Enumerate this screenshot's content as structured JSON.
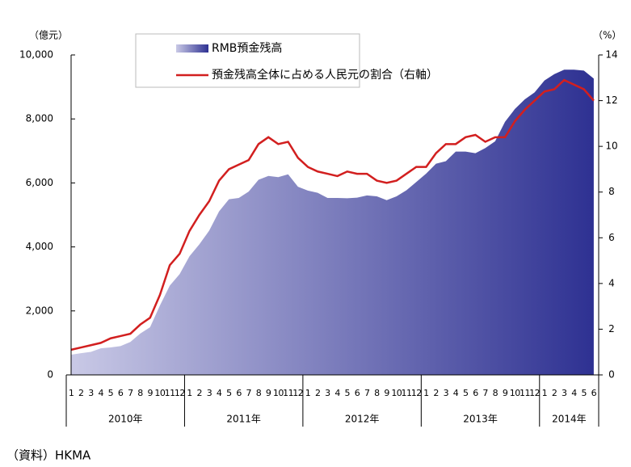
{
  "chart_data": {
    "type": "area-line",
    "y_axis_label": "（億元）",
    "y2_axis_label": "（%）",
    "source": "（資料）HKMA",
    "categories": [
      "1",
      "2",
      "3",
      "4",
      "5",
      "6",
      "7",
      "8",
      "9",
      "10",
      "11",
      "12",
      "1",
      "2",
      "3",
      "4",
      "5",
      "6",
      "7",
      "8",
      "9",
      "10",
      "11",
      "12",
      "1",
      "2",
      "3",
      "4",
      "5",
      "6",
      "7",
      "8",
      "9",
      "10",
      "11",
      "12",
      "1",
      "2",
      "3",
      "4",
      "5",
      "6",
      "7",
      "8",
      "9",
      "10",
      "11",
      "12",
      "1",
      "2",
      "3",
      "4",
      "5",
      "6"
    ],
    "years": [
      {
        "label": "2010年",
        "months": 12
      },
      {
        "label": "2011年",
        "months": 12
      },
      {
        "label": "2012年",
        "months": 12
      },
      {
        "label": "2013年",
        "months": 12
      },
      {
        "label": "2014年",
        "months": 6
      }
    ],
    "series": [
      {
        "name": "RMB預金残高",
        "type": "area",
        "axis": "y",
        "color": "#2e3192",
        "color_start": "#c9c9e6",
        "values": [
          630,
          680,
          720,
          830,
          860,
          900,
          1030,
          1290,
          1490,
          2170,
          2790,
          3150,
          3710,
          4080,
          4510,
          5110,
          5490,
          5530,
          5730,
          6100,
          6220,
          6180,
          6270,
          5880,
          5760,
          5690,
          5530,
          5530,
          5520,
          5540,
          5610,
          5580,
          5460,
          5580,
          5770,
          6030,
          6290,
          6600,
          6680,
          6980,
          6980,
          6930,
          7090,
          7300,
          7910,
          8310,
          8610,
          8830,
          9200,
          9400,
          9540,
          9540,
          9510,
          9260
        ]
      },
      {
        "name": "預金残高全体に占める人民元の割合（右軸）",
        "type": "line",
        "axis": "y2",
        "color": "#d21f1f",
        "values": [
          1.1,
          1.2,
          1.3,
          1.4,
          1.6,
          1.7,
          1.8,
          2.2,
          2.5,
          3.5,
          4.8,
          5.3,
          6.3,
          7.0,
          7.6,
          8.5,
          9.0,
          9.2,
          9.4,
          10.1,
          10.4,
          10.1,
          10.2,
          9.5,
          9.1,
          8.9,
          8.8,
          8.7,
          8.9,
          8.8,
          8.8,
          8.5,
          8.4,
          8.5,
          8.8,
          9.1,
          9.1,
          9.7,
          10.1,
          10.1,
          10.4,
          10.5,
          10.2,
          10.4,
          10.4,
          11.1,
          11.6,
          12.0,
          12.4,
          12.5,
          12.9,
          12.7,
          12.5,
          12.0
        ]
      }
    ],
    "ylim": [
      0,
      10000
    ],
    "yticks": [
      0,
      {
        "value": 2000,
        "label": "2,000"
      },
      {
        "value": 4000,
        "label": "4,000"
      },
      {
        "value": 6000,
        "label": "6,000"
      },
      {
        "value": 8000,
        "label": "8,000"
      },
      {
        "value": 10000,
        "label": "10,000"
      }
    ],
    "y2lim": [
      0,
      14
    ],
    "y2ticks": [
      0,
      2,
      4,
      6,
      8,
      10,
      12,
      14
    ]
  }
}
